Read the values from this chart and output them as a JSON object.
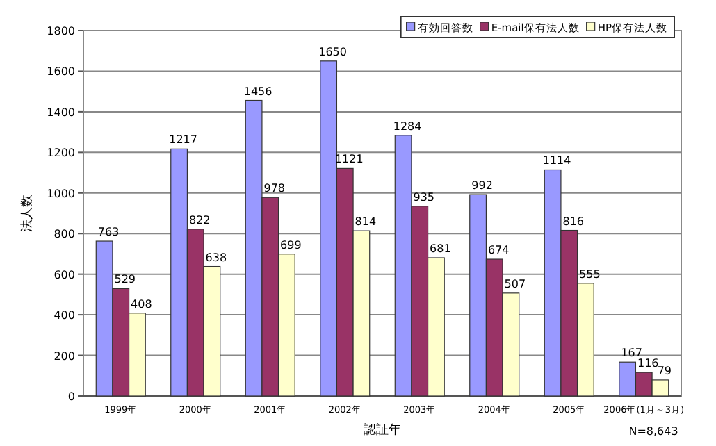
{
  "chart_data": {
    "type": "bar",
    "xlabel": "認証年",
    "ylabel": "法人数",
    "categories": [
      "1999年",
      "2000年",
      "2001年",
      "2002年",
      "2003年",
      "2004年",
      "2005年",
      "2006年(1月～3月)"
    ],
    "series": [
      {
        "name": "有効回答数",
        "color": "#9999ff",
        "values": [
          763,
          1217,
          1456,
          1650,
          1284,
          992,
          1114,
          167
        ]
      },
      {
        "name": "E-mail保有法人数",
        "color": "#993366",
        "values": [
          529,
          822,
          978,
          1121,
          935,
          674,
          816,
          116
        ]
      },
      {
        "name": "HP保有法人数",
        "color": "#ffffcc",
        "values": [
          408,
          638,
          699,
          814,
          681,
          507,
          555,
          79
        ]
      }
    ],
    "ylim": [
      0,
      1800
    ],
    "yticks": [
      0,
      200,
      400,
      600,
      800,
      1000,
      1200,
      1400,
      1600,
      1800
    ],
    "grid": "y",
    "legend": "top right",
    "data_labels": true,
    "annotations": [
      "N=8,643"
    ]
  }
}
